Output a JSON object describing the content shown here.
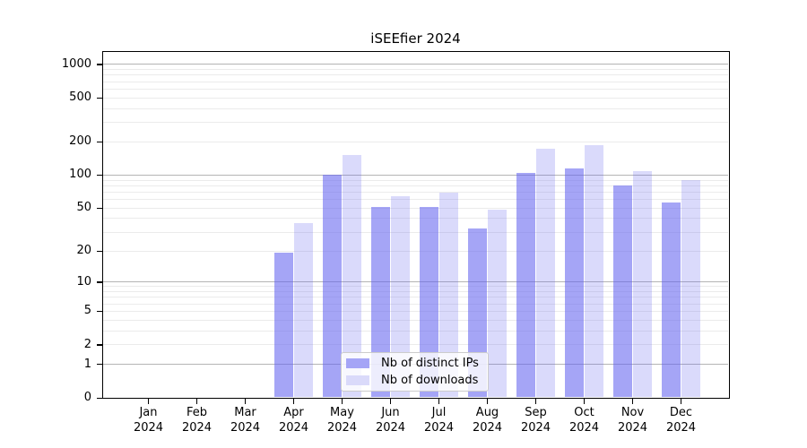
{
  "chart_data": {
    "type": "bar",
    "title": "iSEEfier 2024",
    "categories": [
      "Jan",
      "Feb",
      "Mar",
      "Apr",
      "May",
      "Jun",
      "Jul",
      "Aug",
      "Sep",
      "Oct",
      "Nov",
      "Dec"
    ],
    "year_label": "2024",
    "series": [
      {
        "name": "Nb of distinct IPs",
        "values": [
          0,
          0,
          0,
          19,
          100,
          51,
          51,
          32,
          103,
          114,
          80,
          56
        ],
        "fill_rgba": "rgba(100,100,240,0.58)",
        "swatch_hex": "#a5a5f6"
      },
      {
        "name": "Nb of downloads",
        "values": [
          0,
          0,
          0,
          36,
          150,
          63,
          69,
          48,
          172,
          186,
          107,
          90
        ],
        "fill_rgba": "rgba(100,100,240,0.24)",
        "swatch_hex": "#dadafa"
      }
    ],
    "yscale": "log1p",
    "ylim": [
      0,
      1270
    ],
    "yticks": [
      0,
      1,
      2,
      5,
      10,
      20,
      50,
      100,
      200,
      500,
      1000
    ],
    "grid": {
      "enabled": true,
      "major_values": [
        1,
        10,
        100,
        1000
      ],
      "major_color": "#b4b4b4",
      "minor_color": "#ebebeb"
    },
    "legend": {
      "position": "lower center"
    },
    "axis_color": "#000000",
    "background": "#ffffff"
  }
}
